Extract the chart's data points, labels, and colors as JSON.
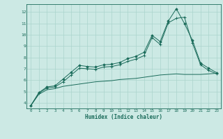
{
  "title": "",
  "xlabel": "Humidex (Indice chaleur)",
  "ylabel": "",
  "bg_color": "#cce9e4",
  "grid_color": "#aad4cc",
  "line_color": "#1a6b5a",
  "xlim": [
    -0.5,
    23.5
  ],
  "ylim": [
    3.5,
    12.7
  ],
  "xticks": [
    0,
    1,
    2,
    3,
    4,
    5,
    6,
    7,
    8,
    9,
    10,
    11,
    12,
    13,
    14,
    15,
    16,
    17,
    18,
    19,
    20,
    21,
    22,
    23
  ],
  "yticks": [
    4,
    5,
    6,
    7,
    8,
    9,
    10,
    11,
    12
  ],
  "line1_x": [
    0,
    1,
    2,
    3,
    4,
    5,
    6,
    7,
    8,
    9,
    10,
    11,
    12,
    13,
    14,
    15,
    16,
    17,
    18,
    19,
    20,
    21,
    22,
    23
  ],
  "line1_y": [
    3.75,
    4.9,
    5.4,
    5.5,
    6.1,
    6.7,
    7.3,
    7.2,
    7.15,
    7.35,
    7.4,
    7.55,
    7.9,
    8.1,
    8.45,
    9.95,
    9.4,
    11.2,
    12.3,
    11.0,
    9.5,
    7.5,
    7.05,
    6.65
  ],
  "line2_x": [
    0,
    1,
    2,
    3,
    4,
    5,
    6,
    7,
    8,
    9,
    10,
    11,
    12,
    13,
    14,
    15,
    16,
    17,
    18,
    19,
    20,
    21,
    22,
    23
  ],
  "line2_y": [
    3.75,
    4.85,
    5.3,
    5.4,
    5.85,
    6.45,
    7.05,
    7.0,
    6.95,
    7.15,
    7.2,
    7.35,
    7.65,
    7.85,
    8.15,
    9.75,
    9.15,
    11.05,
    11.45,
    11.55,
    9.25,
    7.35,
    6.85,
    6.55
  ],
  "line3_x": [
    0,
    1,
    2,
    3,
    4,
    5,
    6,
    7,
    8,
    9,
    10,
    11,
    12,
    13,
    14,
    15,
    16,
    17,
    18,
    19,
    20,
    21,
    22,
    23
  ],
  "line3_y": [
    3.75,
    4.75,
    5.15,
    5.25,
    5.45,
    5.55,
    5.65,
    5.75,
    5.85,
    5.9,
    5.95,
    6.05,
    6.1,
    6.15,
    6.25,
    6.35,
    6.45,
    6.5,
    6.55,
    6.5,
    6.5,
    6.5,
    6.55,
    6.6
  ]
}
